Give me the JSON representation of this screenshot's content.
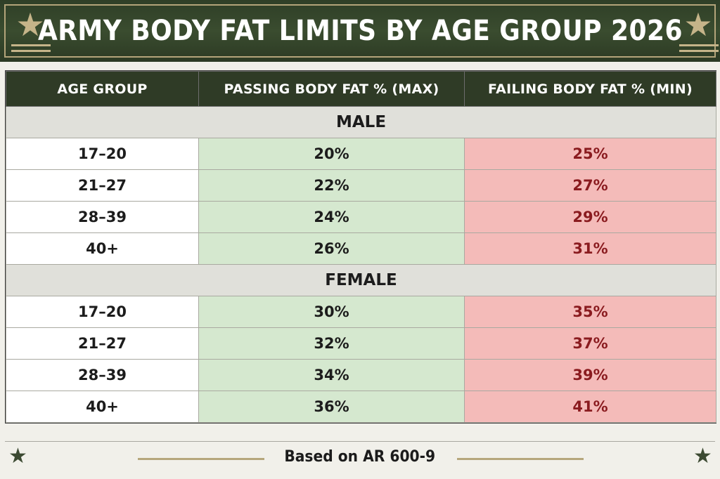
{
  "header": {
    "title": "ARMY BODY FAT LIMITS BY AGE GROUP 2026"
  },
  "table": {
    "columns": [
      "AGE GROUP",
      "PASSING BODY FAT % (MAX)",
      "FAILING BODY FAT % (MIN)"
    ],
    "sections": [
      {
        "label": "MALE",
        "rows": [
          {
            "age": "17–20",
            "pass": "20%",
            "fail": "25%"
          },
          {
            "age": "21–27",
            "pass": "22%",
            "fail": "27%"
          },
          {
            "age": "28–39",
            "pass": "24%",
            "fail": "29%"
          },
          {
            "age": "40+",
            "pass": "26%",
            "fail": "31%"
          }
        ]
      },
      {
        "label": "FEMALE",
        "rows": [
          {
            "age": "17–20",
            "pass": "30%",
            "fail": "35%"
          },
          {
            "age": "21–27",
            "pass": "32%",
            "fail": "37%"
          },
          {
            "age": "28–39",
            "pass": "34%",
            "fail": "39%"
          },
          {
            "age": "40+",
            "pass": "36%",
            "fail": "41%"
          }
        ]
      }
    ]
  },
  "footer": {
    "text": "Based on AR 600-9"
  },
  "colors": {
    "banner": "#2f3f27",
    "accent_gold": "#c5b489",
    "pass_bg": "#d5e8cf",
    "fail_bg": "#f4bbb9",
    "fail_text": "#8a1b1f"
  },
  "icons": [
    "star-icon"
  ]
}
